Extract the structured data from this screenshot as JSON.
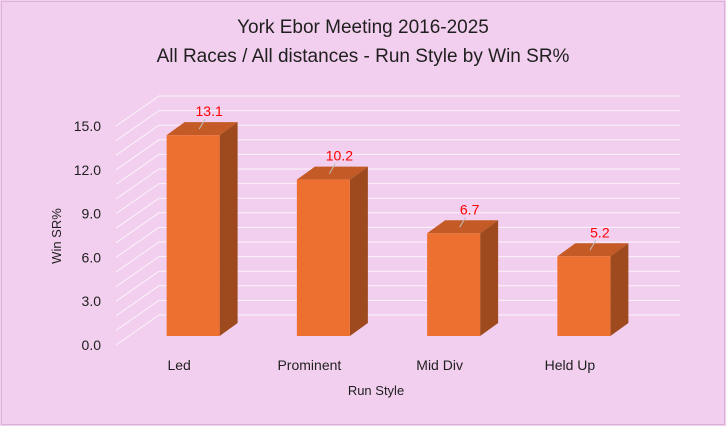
{
  "chart_data": {
    "type": "bar",
    "title_line1": "York Ebor Meeting 2016-2025",
    "title_line2": "All Races / All distances - Run Style by Win SR%",
    "categories": [
      "Led",
      "Prominent",
      "Mid Div",
      "Held Up"
    ],
    "values": [
      13.1,
      10.2,
      6.7,
      5.2
    ],
    "data_labels": [
      "13.1",
      "10.2",
      "6.7",
      "5.2"
    ],
    "xlabel": "Run Style",
    "ylabel": "Win SR%",
    "ylim": [
      0,
      15
    ],
    "yticks": [
      "0.0",
      "3.0",
      "6.0",
      "9.0",
      "12.0",
      "15.0"
    ],
    "grid": true,
    "legend": "none",
    "colors": {
      "bar_front": "#ed7031",
      "bar_side": "#9e4a1e",
      "bar_top": "#c45a25",
      "label": "#ff0000",
      "background": "#f2cfee"
    }
  }
}
